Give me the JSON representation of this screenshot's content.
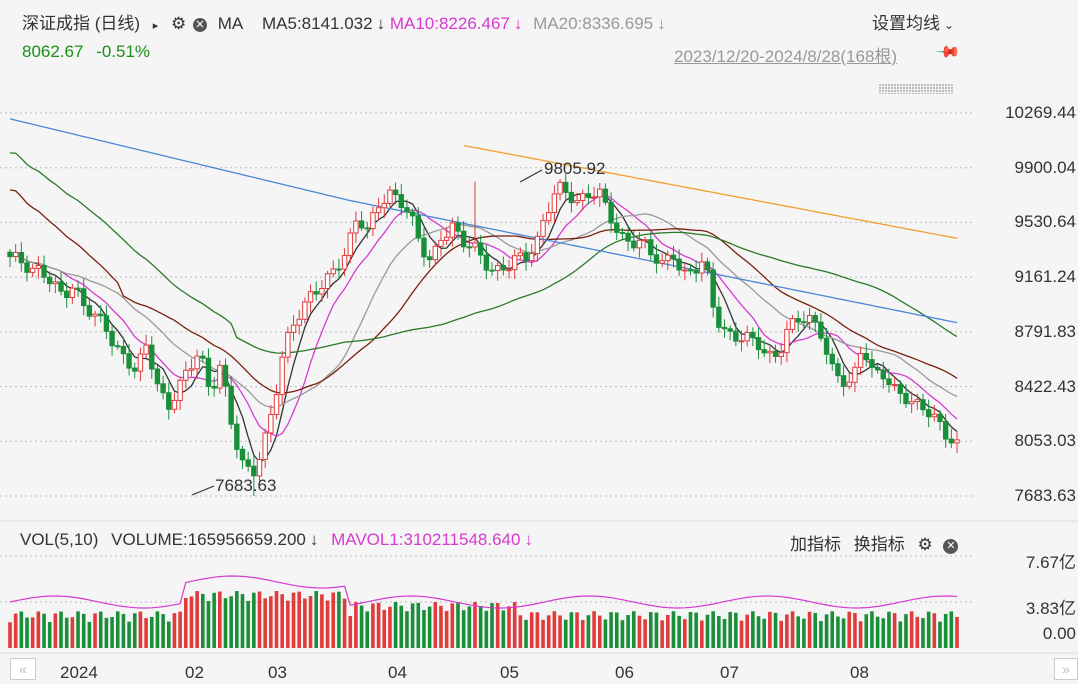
{
  "header": {
    "title": "深证成指 (日线)",
    "play_icon": "triangle-right-icon",
    "ma_label": "MA",
    "ma5": "MA5:8141.032",
    "ma10": "MA10:8226.467",
    "ma20": "MA20:8336.695",
    "settings_label": "设置均线",
    "last_price": "8062.67",
    "change_pct": "-0.51%",
    "date_range": "2023/12/20-2024/8/28(168根)"
  },
  "main_chart": {
    "price_labels": [
      "10269.44",
      "9900.04",
      "9530.64",
      "9161.24",
      "8791.83",
      "8422.43",
      "8053.03",
      "7683.63"
    ],
    "annot_high": "9805.92",
    "annot_low": "7683.63"
  },
  "volume_panel": {
    "vol_label": "VOL(5,10)",
    "volume_value": "VOLUME:165956659.200",
    "mavol_value": "MAVOL1:310211548.640",
    "add_indicator": "加指标",
    "switch_indicator": "换指标",
    "vol_axis": [
      "7.67亿",
      "3.83亿",
      "0.00"
    ]
  },
  "x_axis": {
    "labels": [
      "2024",
      "02",
      "03",
      "04",
      "05",
      "06",
      "07",
      "08"
    ]
  },
  "colors": {
    "up": "#e03c3c",
    "down": "#1a8f3a",
    "ma5": "#333333",
    "ma10": "#d63ad1",
    "ma20": "#999999",
    "ma30": "#7a1f10",
    "ma60": "#2a7a2a",
    "ma120": "#4a86d8",
    "ma250": "#f0a030"
  },
  "chart_data": {
    "type": "candlestick",
    "ylim": [
      7683.63,
      10269.44
    ],
    "high": 9805.92,
    "low": 7683.63,
    "last": 8062.67,
    "ma_last": {
      "ma5": 8141.032,
      "ma10": 8226.467,
      "ma20": 8336.695
    },
    "bars_count": 168,
    "start_date": "2023/12/20",
    "end_date": "2024/8/28",
    "close_path": [
      9300,
      9250,
      9180,
      9220,
      9150,
      9050,
      9080,
      8950,
      8900,
      8870,
      8700,
      8600,
      8500,
      8700,
      8450,
      8300,
      8420,
      8520,
      8650,
      8380,
      8600,
      8200,
      7900,
      7790,
      8000,
      8300,
      8700,
      8850,
      8950,
      9050,
      9150,
      9250,
      9350,
      9550,
      9450,
      9650,
      9750,
      9700,
      9580,
      9350,
      9250,
      9450,
      9530,
      9400,
      9350,
      9250,
      9200,
      9250,
      9300,
      9280,
      9350,
      9600,
      9800,
      9750,
      9650,
      9700,
      9720,
      9600,
      9450,
      9400,
      9380,
      9300,
      9250,
      9350,
      9180,
      9200,
      9250,
      8900,
      8800,
      8780,
      8750,
      8700,
      8600,
      8650,
      8850,
      8900,
      8850,
      8780,
      8550,
      8500,
      8450,
      8700,
      8480,
      8500,
      8420,
      8380,
      8300,
      8250,
      8180,
      8100,
      8062.67
    ]
  }
}
